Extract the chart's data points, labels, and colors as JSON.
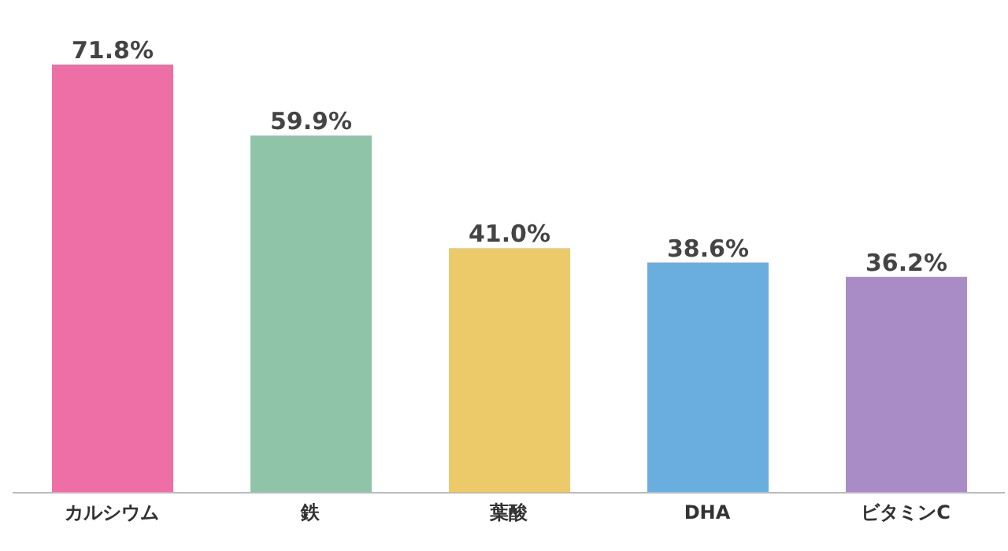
{
  "chart_data": {
    "type": "bar",
    "categories": [
      "カルシウム",
      "鉄",
      "葉酸",
      "DHA",
      "ビタミンC"
    ],
    "values": [
      71.8,
      59.9,
      41.0,
      38.6,
      36.2
    ],
    "colors": [
      "#ee6fa5",
      "#8fc4a8",
      "#ecca6a",
      "#6aaee0",
      "#a98cc5"
    ],
    "tick_labels": "x",
    "value_labels": [
      "71.8%",
      "59.9%",
      "41.0%",
      "38.6%",
      "36.2%"
    ],
    "grid": false,
    "legend": false
  }
}
